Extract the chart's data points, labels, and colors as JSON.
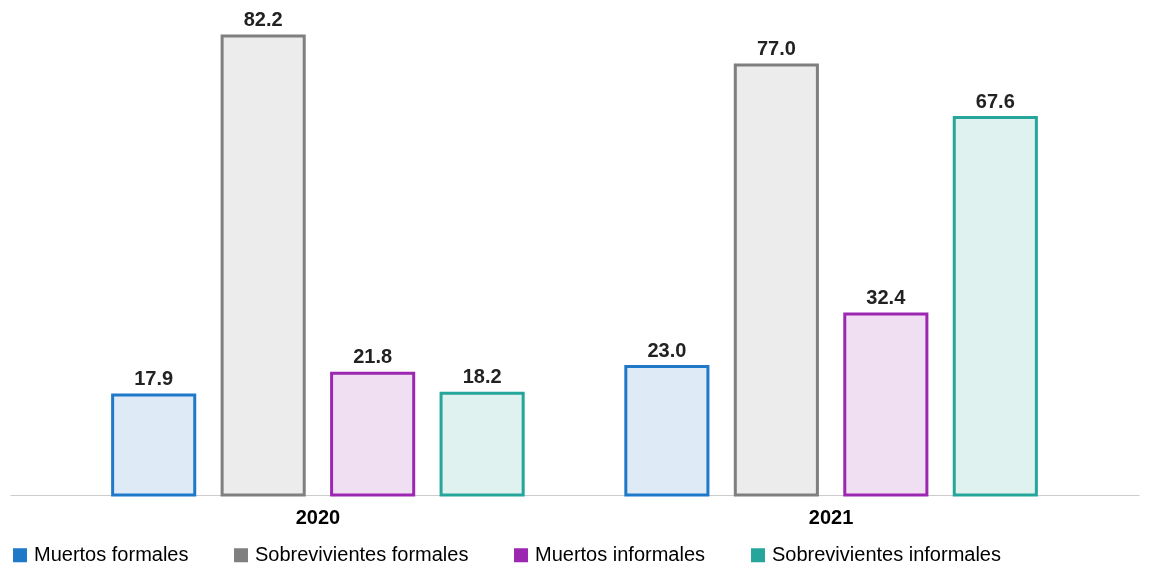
{
  "chart_data": {
    "type": "bar",
    "categories": [
      "2020",
      "2021"
    ],
    "series": [
      {
        "name": "Muertos formales",
        "color": "#1f78c8",
        "values": [
          17.9,
          23.0
        ],
        "value_labels": [
          "17.9",
          "23.0"
        ]
      },
      {
        "name": "Sobrevivientes formales",
        "color": "#7f7f7f",
        "values": [
          82.2,
          77.0
        ],
        "value_labels": [
          "82.2",
          "77.0"
        ]
      },
      {
        "name": "Muertos informales",
        "color": "#9c27b0",
        "values": [
          21.8,
          32.4
        ],
        "value_labels": [
          "21.8",
          "32.4"
        ]
      },
      {
        "name": "Sobrevivientes informales",
        "color": "#26a69a",
        "values": [
          18.2,
          67.6
        ],
        "value_labels": [
          "18.2",
          "67.6"
        ]
      }
    ],
    "legend": "bottom",
    "grid": false
  }
}
